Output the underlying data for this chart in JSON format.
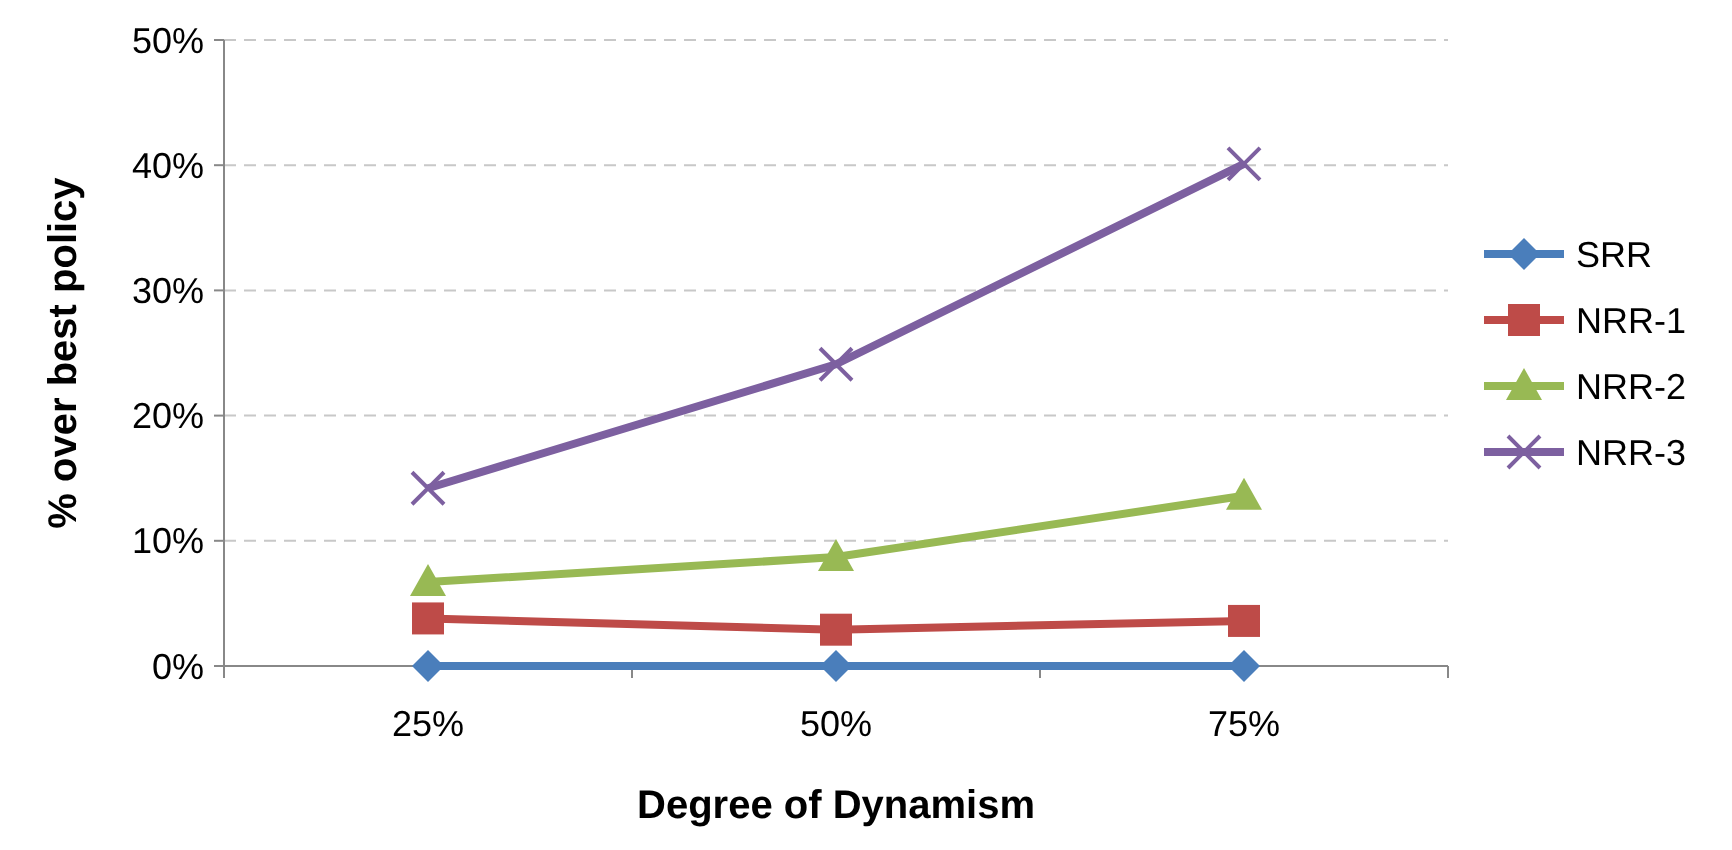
{
  "chart_data": {
    "type": "line",
    "xlabel": "Degree of Dynamism",
    "ylabel": "% over best policy",
    "categories": [
      "25%",
      "50%",
      "75%"
    ],
    "series": [
      {
        "name": "SRR",
        "color": "#4a7ebb",
        "values": [
          0,
          0,
          0
        ],
        "marker": "diamond"
      },
      {
        "name": "NRR-1",
        "color": "#be4b48",
        "values": [
          0.038,
          0.029,
          0.036
        ],
        "marker": "square"
      },
      {
        "name": "NRR-2",
        "color": "#98b954",
        "values": [
          0.067,
          0.087,
          0.136
        ],
        "marker": "triangle"
      },
      {
        "name": "NRR-3",
        "color": "#7d60a0",
        "values": [
          0.142,
          0.241,
          0.401
        ],
        "marker": "cross"
      }
    ],
    "ylim": [
      0,
      0.5
    ],
    "yticks": [
      {
        "value": 0,
        "label": "0%"
      },
      {
        "value": 0.1,
        "label": "10%"
      },
      {
        "value": 0.2,
        "label": "20%"
      },
      {
        "value": 0.3,
        "label": "30%"
      },
      {
        "value": 0.4,
        "label": "40%"
      },
      {
        "value": 0.5,
        "label": "50%"
      }
    ],
    "grid": "y",
    "legend": "right",
    "line_style": "solid"
  }
}
